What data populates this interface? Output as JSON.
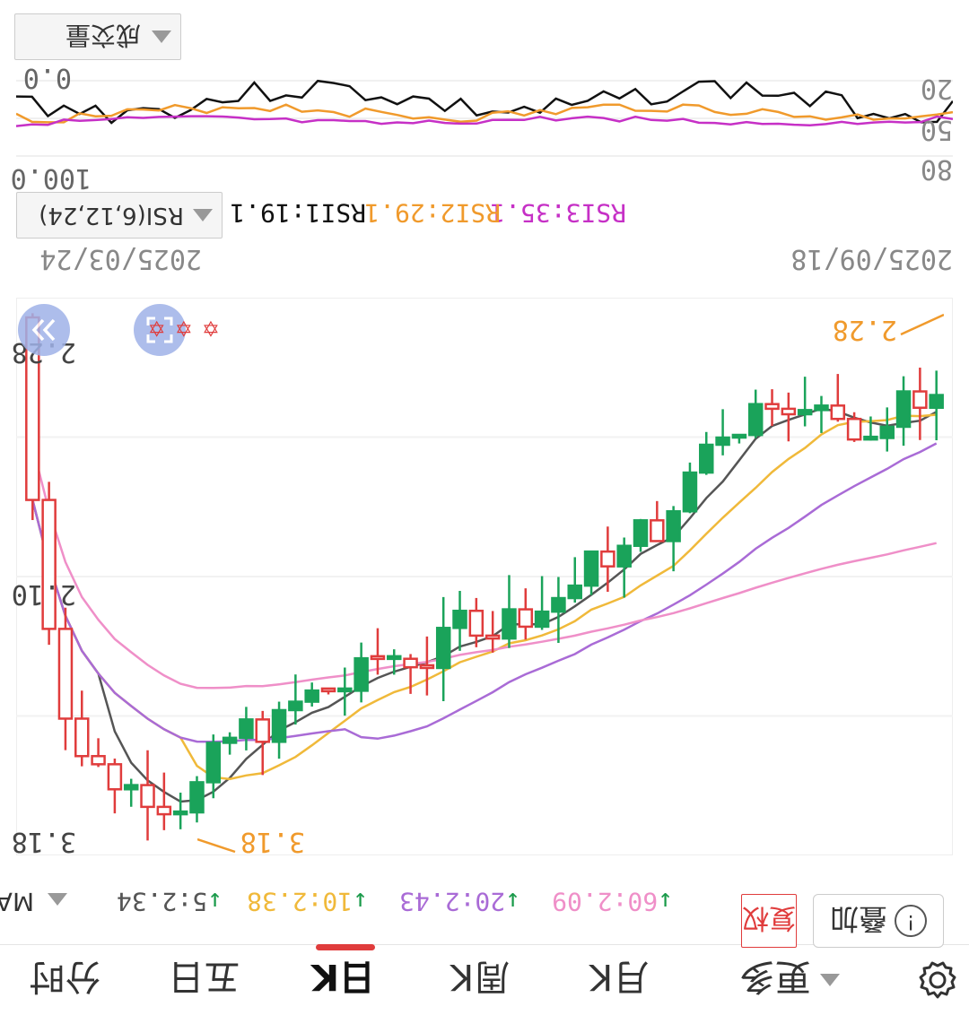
{
  "bottom_nav": {
    "tabs": [
      {
        "label": "分时",
        "active": false
      },
      {
        "label": "五日",
        "active": false
      },
      {
        "label": "日K",
        "active": true
      },
      {
        "label": "周K",
        "active": false
      },
      {
        "label": "月K",
        "active": false
      },
      {
        "label": "更多",
        "active": false
      }
    ],
    "settings_icon": "gear-icon"
  },
  "ma_bar": {
    "title": "MA",
    "items": [
      {
        "label": "5:2.34",
        "color": "#555555"
      },
      {
        "label": "10:2.38",
        "color": "#f0b93a"
      },
      {
        "label": "20:2.43",
        "color": "#a96bd6"
      },
      {
        "label": "60:2.09",
        "color": "#ef8fc8"
      }
    ],
    "arrow_color": "#1a9a4a",
    "fuquan_label": "复权",
    "compare_label": "叠加"
  },
  "price_chart": {
    "high_label": "2.28",
    "low_label": "3.18",
    "mid_label": "2.10",
    "high_annotation": "2.28",
    "low_annotation": "3.18",
    "date_start": "2025/03/24",
    "date_end": "2025/09/18",
    "up_color": "#e03c3c",
    "down_color": "#1aa35a",
    "annot_color": "#f09a2c"
  },
  "rsi_bar": {
    "title": "RSI(6,12,24)",
    "items": [
      {
        "label": "RSI1:19.1",
        "color": "#111111"
      },
      {
        "label": "RSI2:29.1",
        "color": "#f09a2c"
      },
      {
        "label": "RSI3:35.1",
        "color": "#c630c6"
      }
    ]
  },
  "rsi_chart": {
    "axis_left_top": "100.0",
    "axis_left_bottom": "0.0",
    "axis_right": [
      "80",
      "50",
      "20"
    ]
  },
  "bottom_indicator": {
    "label": "成交量"
  },
  "chart_data": {
    "type": "candlestick",
    "x_range": [
      "2025/03/24",
      "2025/09/18"
    ],
    "ma_series": [
      {
        "name": "5",
        "last": 2.34
      },
      {
        "name": "10",
        "last": 2.38
      },
      {
        "name": "20",
        "last": 2.43
      },
      {
        "name": "60",
        "last": 2.09
      }
    ],
    "rsi_series": [
      {
        "name": "RSI1",
        "last": 19.1
      },
      {
        "name": "RSI2",
        "last": 29.1
      },
      {
        "name": "RSI3",
        "last": 35.1
      }
    ]
  }
}
